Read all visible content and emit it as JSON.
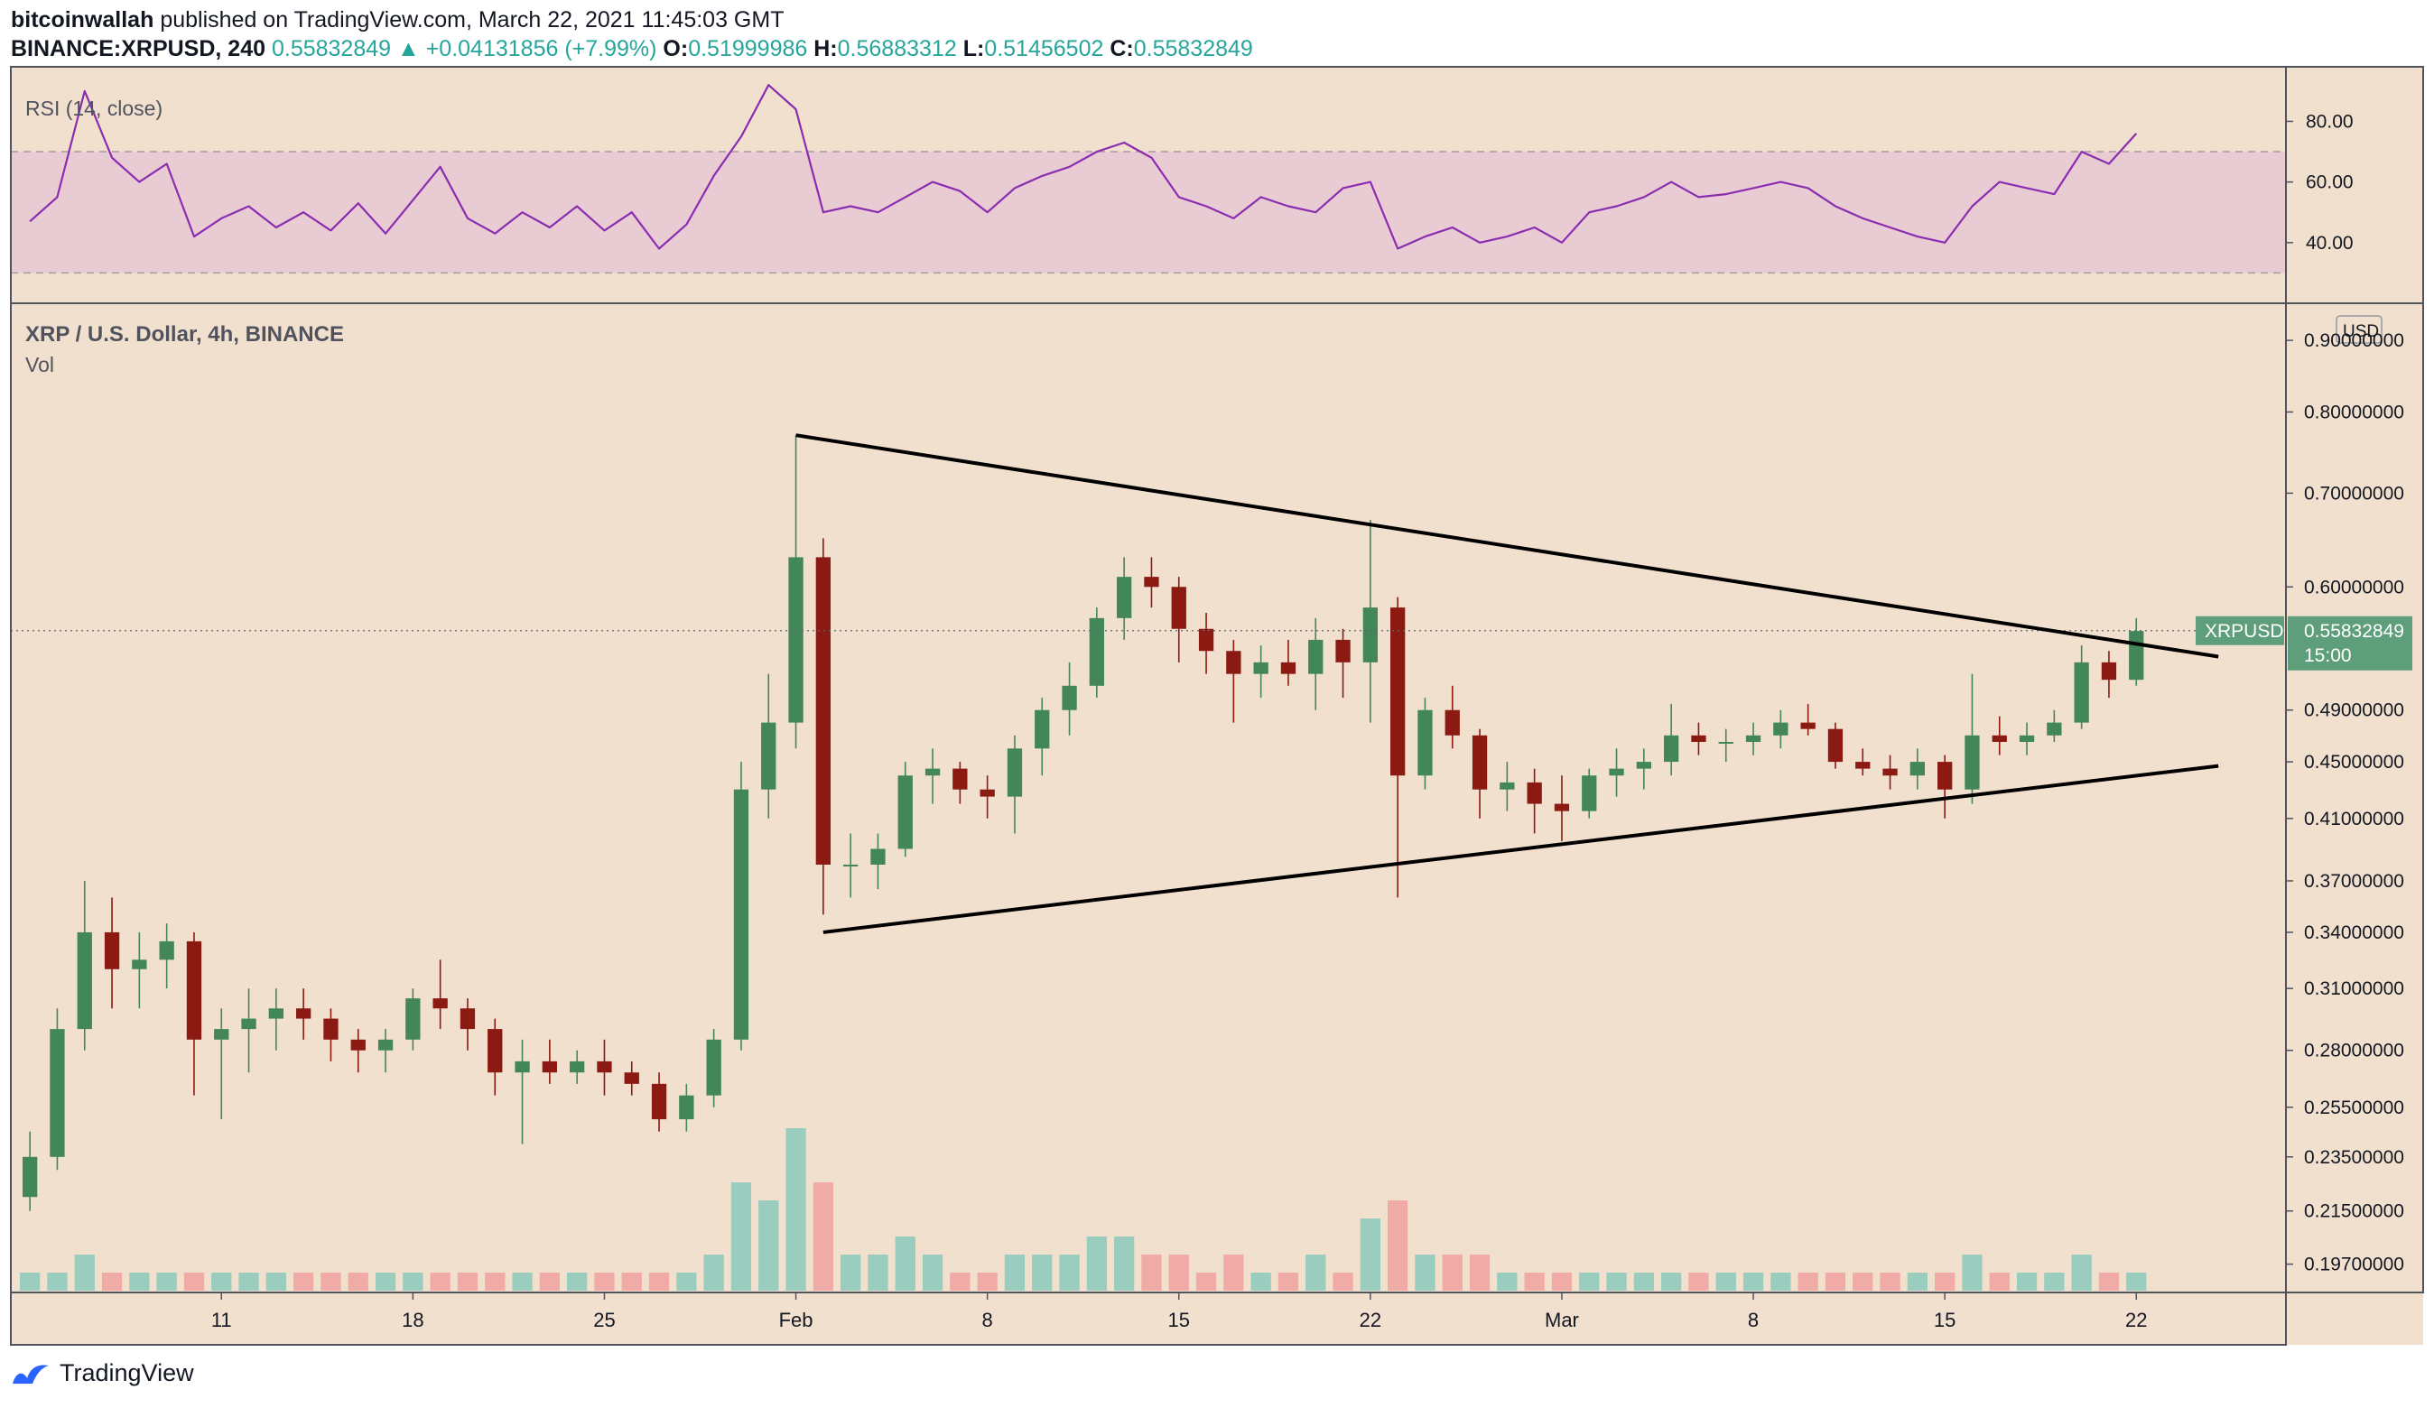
{
  "header": {
    "author": "bitcoinwallah",
    "published_text": "published on TradingView.com, March 22, 2021 11:45:03 GMT",
    "symbol": "BINANCE:XRPUSD, 240",
    "last": "0.55832849",
    "change": "▲ +0.04131856 (+7.99%)",
    "o_label": "O:",
    "o_value": "0.51999986",
    "h_label": "H:",
    "h_value": "0.56883312",
    "l_label": "L:",
    "l_value": "0.51456502",
    "c_label": "C:",
    "c_value": "0.55832849"
  },
  "footer": {
    "brand": "TradingView"
  },
  "colors": {
    "background": "#f2e0cf",
    "up": "#43865a",
    "down": "#8b1a12",
    "rsi_line": "#8a2db0",
    "rsi_band": "#e8c8d3",
    "badge": "#5e9e7b"
  },
  "chart_data": [
    {
      "type": "line",
      "title": "RSI (14, close)",
      "yticks": [
        "80.00",
        "60.00",
        "40.00"
      ],
      "band": [
        30,
        70
      ],
      "ylim": [
        20,
        98
      ],
      "series": [
        {
          "points": [
            [
              "2021-01-04",
              47
            ],
            [
              "2021-01-05",
              55
            ],
            [
              "2021-01-06",
              90
            ],
            [
              "2021-01-07",
              68
            ],
            [
              "2021-01-08",
              60
            ],
            [
              "2021-01-09",
              66
            ],
            [
              "2021-01-10",
              42
            ],
            [
              "2021-01-11",
              48
            ],
            [
              "2021-01-12",
              52
            ],
            [
              "2021-01-13",
              45
            ],
            [
              "2021-01-14",
              50
            ],
            [
              "2021-01-15",
              44
            ],
            [
              "2021-01-16",
              53
            ],
            [
              "2021-01-17",
              43
            ],
            [
              "2021-01-18",
              54
            ],
            [
              "2021-01-19",
              65
            ],
            [
              "2021-01-20",
              48
            ],
            [
              "2021-01-21",
              43
            ],
            [
              "2021-01-22",
              50
            ],
            [
              "2021-01-23",
              45
            ],
            [
              "2021-01-24",
              52
            ],
            [
              "2021-01-25",
              44
            ],
            [
              "2021-01-26",
              50
            ],
            [
              "2021-01-27",
              38
            ],
            [
              "2021-01-28",
              46
            ],
            [
              "2021-01-29",
              62
            ],
            [
              "2021-01-30",
              75
            ],
            [
              "2021-01-31",
              92
            ],
            [
              "2021-02-01",
              84
            ],
            [
              "2021-02-02",
              50
            ],
            [
              "2021-02-03",
              52
            ],
            [
              "2021-02-04",
              50
            ],
            [
              "2021-02-05",
              55
            ],
            [
              "2021-02-06",
              60
            ],
            [
              "2021-02-07",
              57
            ],
            [
              "2021-02-08",
              50
            ],
            [
              "2021-02-09",
              58
            ],
            [
              "2021-02-10",
              62
            ],
            [
              "2021-02-11",
              65
            ],
            [
              "2021-02-12",
              70
            ],
            [
              "2021-02-13",
              73
            ],
            [
              "2021-02-14",
              68
            ],
            [
              "2021-02-15",
              55
            ],
            [
              "2021-02-16",
              52
            ],
            [
              "2021-02-17",
              48
            ],
            [
              "2021-02-18",
              55
            ],
            [
              "2021-02-19",
              52
            ],
            [
              "2021-02-20",
              50
            ],
            [
              "2021-02-21",
              58
            ],
            [
              "2021-02-22",
              60
            ],
            [
              "2021-02-23",
              38
            ],
            [
              "2021-02-24",
              42
            ],
            [
              "2021-02-25",
              45
            ],
            [
              "2021-02-26",
              40
            ],
            [
              "2021-02-27",
              42
            ],
            [
              "2021-02-28",
              45
            ],
            [
              "2021-03-01",
              40
            ],
            [
              "2021-03-02",
              50
            ],
            [
              "2021-03-03",
              52
            ],
            [
              "2021-03-04",
              55
            ],
            [
              "2021-03-05",
              60
            ],
            [
              "2021-03-06",
              55
            ],
            [
              "2021-03-07",
              56
            ],
            [
              "2021-03-08",
              58
            ],
            [
              "2021-03-09",
              60
            ],
            [
              "2021-03-10",
              58
            ],
            [
              "2021-03-11",
              52
            ],
            [
              "2021-03-12",
              48
            ],
            [
              "2021-03-13",
              45
            ],
            [
              "2021-03-14",
              42
            ],
            [
              "2021-03-15",
              40
            ],
            [
              "2021-03-16",
              52
            ],
            [
              "2021-03-17",
              60
            ],
            [
              "2021-03-18",
              58
            ],
            [
              "2021-03-19",
              56
            ],
            [
              "2021-03-20",
              70
            ],
            [
              "2021-03-21",
              66
            ],
            [
              "2021-03-22",
              76
            ]
          ]
        }
      ]
    },
    {
      "type": "candlestick",
      "title": "XRP / U.S. Dollar, 4h, BINANCE",
      "subtitle": "Vol",
      "yscale": "log",
      "ylim": [
        0.19,
        0.93
      ],
      "currency_label": "USD",
      "yticks": [
        "0.90000000",
        "0.80000000",
        "0.70000000",
        "0.60000000",
        "0.49000000",
        "0.45000000",
        "0.41000000",
        "0.37000000",
        "0.34000000",
        "0.31000000",
        "0.28000000",
        "0.25500000",
        "0.23500000",
        "0.21500000",
        "0.19700000"
      ],
      "xticks": [
        "11",
        "18",
        "25",
        "Feb",
        "8",
        "15",
        "22",
        "Mar",
        "8",
        "15",
        "22"
      ],
      "xtick_dates": [
        "2021-01-11",
        "2021-01-18",
        "2021-01-25",
        "2021-02-01",
        "2021-02-08",
        "2021-02-15",
        "2021-02-22",
        "2021-03-01",
        "2021-03-08",
        "2021-03-15",
        "2021-03-22"
      ],
      "price_label": {
        "symbol": "XRPUSD",
        "value": "0.55832849",
        "countdown": "15:00"
      },
      "last_price": 0.55832849,
      "trendlines": [
        {
          "from": [
            "2021-02-01",
            0.77
          ],
          "to": [
            "2021-03-25",
            0.535
          ]
        },
        {
          "from": [
            "2021-02-02",
            0.34
          ],
          "to": [
            "2021-03-25",
            0.447
          ]
        }
      ],
      "candles_daily": [
        [
          "2021-01-04",
          0.22,
          0.245,
          0.215,
          0.235,
          1
        ],
        [
          "2021-01-05",
          0.235,
          0.3,
          0.23,
          0.29,
          1
        ],
        [
          "2021-01-06",
          0.29,
          0.37,
          0.28,
          0.34,
          2
        ],
        [
          "2021-01-07",
          0.34,
          0.36,
          0.3,
          0.32,
          1
        ],
        [
          "2021-01-08",
          0.32,
          0.34,
          0.3,
          0.325,
          1
        ],
        [
          "2021-01-09",
          0.325,
          0.345,
          0.31,
          0.335,
          1
        ],
        [
          "2021-01-10",
          0.335,
          0.34,
          0.26,
          0.285,
          1
        ],
        [
          "2021-01-11",
          0.285,
          0.3,
          0.25,
          0.29,
          1
        ],
        [
          "2021-01-12",
          0.29,
          0.31,
          0.27,
          0.295,
          1
        ],
        [
          "2021-01-13",
          0.295,
          0.31,
          0.28,
          0.3,
          1
        ],
        [
          "2021-01-14",
          0.3,
          0.31,
          0.285,
          0.295,
          1
        ],
        [
          "2021-01-15",
          0.295,
          0.3,
          0.275,
          0.285,
          1
        ],
        [
          "2021-01-16",
          0.285,
          0.29,
          0.27,
          0.28,
          1
        ],
        [
          "2021-01-17",
          0.28,
          0.29,
          0.27,
          0.285,
          1
        ],
        [
          "2021-01-18",
          0.285,
          0.31,
          0.28,
          0.305,
          1
        ],
        [
          "2021-01-19",
          0.305,
          0.325,
          0.29,
          0.3,
          1
        ],
        [
          "2021-01-20",
          0.3,
          0.305,
          0.28,
          0.29,
          1
        ],
        [
          "2021-01-21",
          0.29,
          0.295,
          0.26,
          0.27,
          1
        ],
        [
          "2021-01-22",
          0.27,
          0.285,
          0.24,
          0.275,
          1
        ],
        [
          "2021-01-23",
          0.275,
          0.285,
          0.265,
          0.27,
          1
        ],
        [
          "2021-01-24",
          0.27,
          0.28,
          0.265,
          0.275,
          1
        ],
        [
          "2021-01-25",
          0.275,
          0.285,
          0.26,
          0.27,
          1
        ],
        [
          "2021-01-26",
          0.27,
          0.275,
          0.26,
          0.265,
          1
        ],
        [
          "2021-01-27",
          0.265,
          0.27,
          0.245,
          0.25,
          1
        ],
        [
          "2021-01-28",
          0.25,
          0.265,
          0.245,
          0.26,
          1
        ],
        [
          "2021-01-29",
          0.26,
          0.29,
          0.255,
          0.285,
          2
        ],
        [
          "2021-01-30",
          0.285,
          0.45,
          0.28,
          0.43,
          6
        ],
        [
          "2021-01-31",
          0.43,
          0.52,
          0.41,
          0.48,
          5
        ],
        [
          "2021-02-01",
          0.48,
          0.77,
          0.46,
          0.63,
          9
        ],
        [
          "2021-02-02",
          0.63,
          0.65,
          0.35,
          0.38,
          6
        ],
        [
          "2021-02-03",
          0.38,
          0.4,
          0.36,
          0.38,
          2
        ],
        [
          "2021-02-04",
          0.38,
          0.4,
          0.365,
          0.39,
          2
        ],
        [
          "2021-02-05",
          0.39,
          0.45,
          0.385,
          0.44,
          3
        ],
        [
          "2021-02-06",
          0.44,
          0.46,
          0.42,
          0.445,
          2
        ],
        [
          "2021-02-07",
          0.445,
          0.45,
          0.42,
          0.43,
          1
        ],
        [
          "2021-02-08",
          0.43,
          0.44,
          0.41,
          0.425,
          1
        ],
        [
          "2021-02-09",
          0.425,
          0.47,
          0.4,
          0.46,
          2
        ],
        [
          "2021-02-10",
          0.46,
          0.5,
          0.44,
          0.49,
          2
        ],
        [
          "2021-02-11",
          0.49,
          0.53,
          0.47,
          0.51,
          2
        ],
        [
          "2021-02-12",
          0.51,
          0.58,
          0.5,
          0.57,
          3
        ],
        [
          "2021-02-13",
          0.57,
          0.63,
          0.55,
          0.61,
          3
        ],
        [
          "2021-02-14",
          0.61,
          0.63,
          0.58,
          0.6,
          2
        ],
        [
          "2021-02-15",
          0.6,
          0.61,
          0.53,
          0.56,
          2
        ],
        [
          "2021-02-16",
          0.56,
          0.575,
          0.52,
          0.54,
          1
        ],
        [
          "2021-02-17",
          0.54,
          0.55,
          0.48,
          0.52,
          2
        ],
        [
          "2021-02-18",
          0.52,
          0.545,
          0.5,
          0.53,
          1
        ],
        [
          "2021-02-19",
          0.53,
          0.55,
          0.51,
          0.52,
          1
        ],
        [
          "2021-02-20",
          0.52,
          0.57,
          0.49,
          0.55,
          2
        ],
        [
          "2021-02-21",
          0.55,
          0.56,
          0.5,
          0.53,
          1
        ],
        [
          "2021-02-22",
          0.53,
          0.67,
          0.48,
          0.58,
          4
        ],
        [
          "2021-02-23",
          0.58,
          0.59,
          0.36,
          0.44,
          5
        ],
        [
          "2021-02-24",
          0.44,
          0.5,
          0.43,
          0.49,
          2
        ],
        [
          "2021-02-25",
          0.49,
          0.51,
          0.46,
          0.47,
          2
        ],
        [
          "2021-02-26",
          0.47,
          0.475,
          0.41,
          0.43,
          2
        ],
        [
          "2021-02-27",
          0.43,
          0.45,
          0.415,
          0.435,
          1
        ],
        [
          "2021-02-28",
          0.435,
          0.445,
          0.4,
          0.42,
          1
        ],
        [
          "2021-03-01",
          0.42,
          0.44,
          0.395,
          0.415,
          1
        ],
        [
          "2021-03-02",
          0.415,
          0.445,
          0.41,
          0.44,
          1
        ],
        [
          "2021-03-03",
          0.44,
          0.46,
          0.425,
          0.445,
          1
        ],
        [
          "2021-03-04",
          0.445,
          0.46,
          0.43,
          0.45,
          1
        ],
        [
          "2021-03-05",
          0.45,
          0.495,
          0.44,
          0.47,
          1
        ],
        [
          "2021-03-06",
          0.47,
          0.48,
          0.455,
          0.465,
          1
        ],
        [
          "2021-03-07",
          0.465,
          0.475,
          0.45,
          0.465,
          1
        ],
        [
          "2021-03-08",
          0.465,
          0.48,
          0.455,
          0.47,
          1
        ],
        [
          "2021-03-09",
          0.47,
          0.49,
          0.46,
          0.48,
          1
        ],
        [
          "2021-03-10",
          0.48,
          0.495,
          0.47,
          0.475,
          1
        ],
        [
          "2021-03-11",
          0.475,
          0.48,
          0.445,
          0.45,
          1
        ],
        [
          "2021-03-12",
          0.45,
          0.46,
          0.44,
          0.445,
          1
        ],
        [
          "2021-03-13",
          0.445,
          0.455,
          0.43,
          0.44,
          1
        ],
        [
          "2021-03-14",
          0.44,
          0.46,
          0.43,
          0.45,
          1
        ],
        [
          "2021-03-15",
          0.45,
          0.455,
          0.41,
          0.43,
          1
        ],
        [
          "2021-03-16",
          0.43,
          0.52,
          0.42,
          0.47,
          2
        ],
        [
          "2021-03-17",
          0.47,
          0.485,
          0.455,
          0.465,
          1
        ],
        [
          "2021-03-18",
          0.465,
          0.48,
          0.455,
          0.47,
          1
        ],
        [
          "2021-03-19",
          0.47,
          0.49,
          0.465,
          0.48,
          1
        ],
        [
          "2021-03-20",
          0.48,
          0.545,
          0.475,
          0.53,
          2
        ],
        [
          "2021-03-21",
          0.53,
          0.54,
          0.5,
          0.515,
          1
        ],
        [
          "2021-03-22",
          0.515,
          0.57,
          0.51,
          0.558,
          1
        ]
      ]
    }
  ]
}
